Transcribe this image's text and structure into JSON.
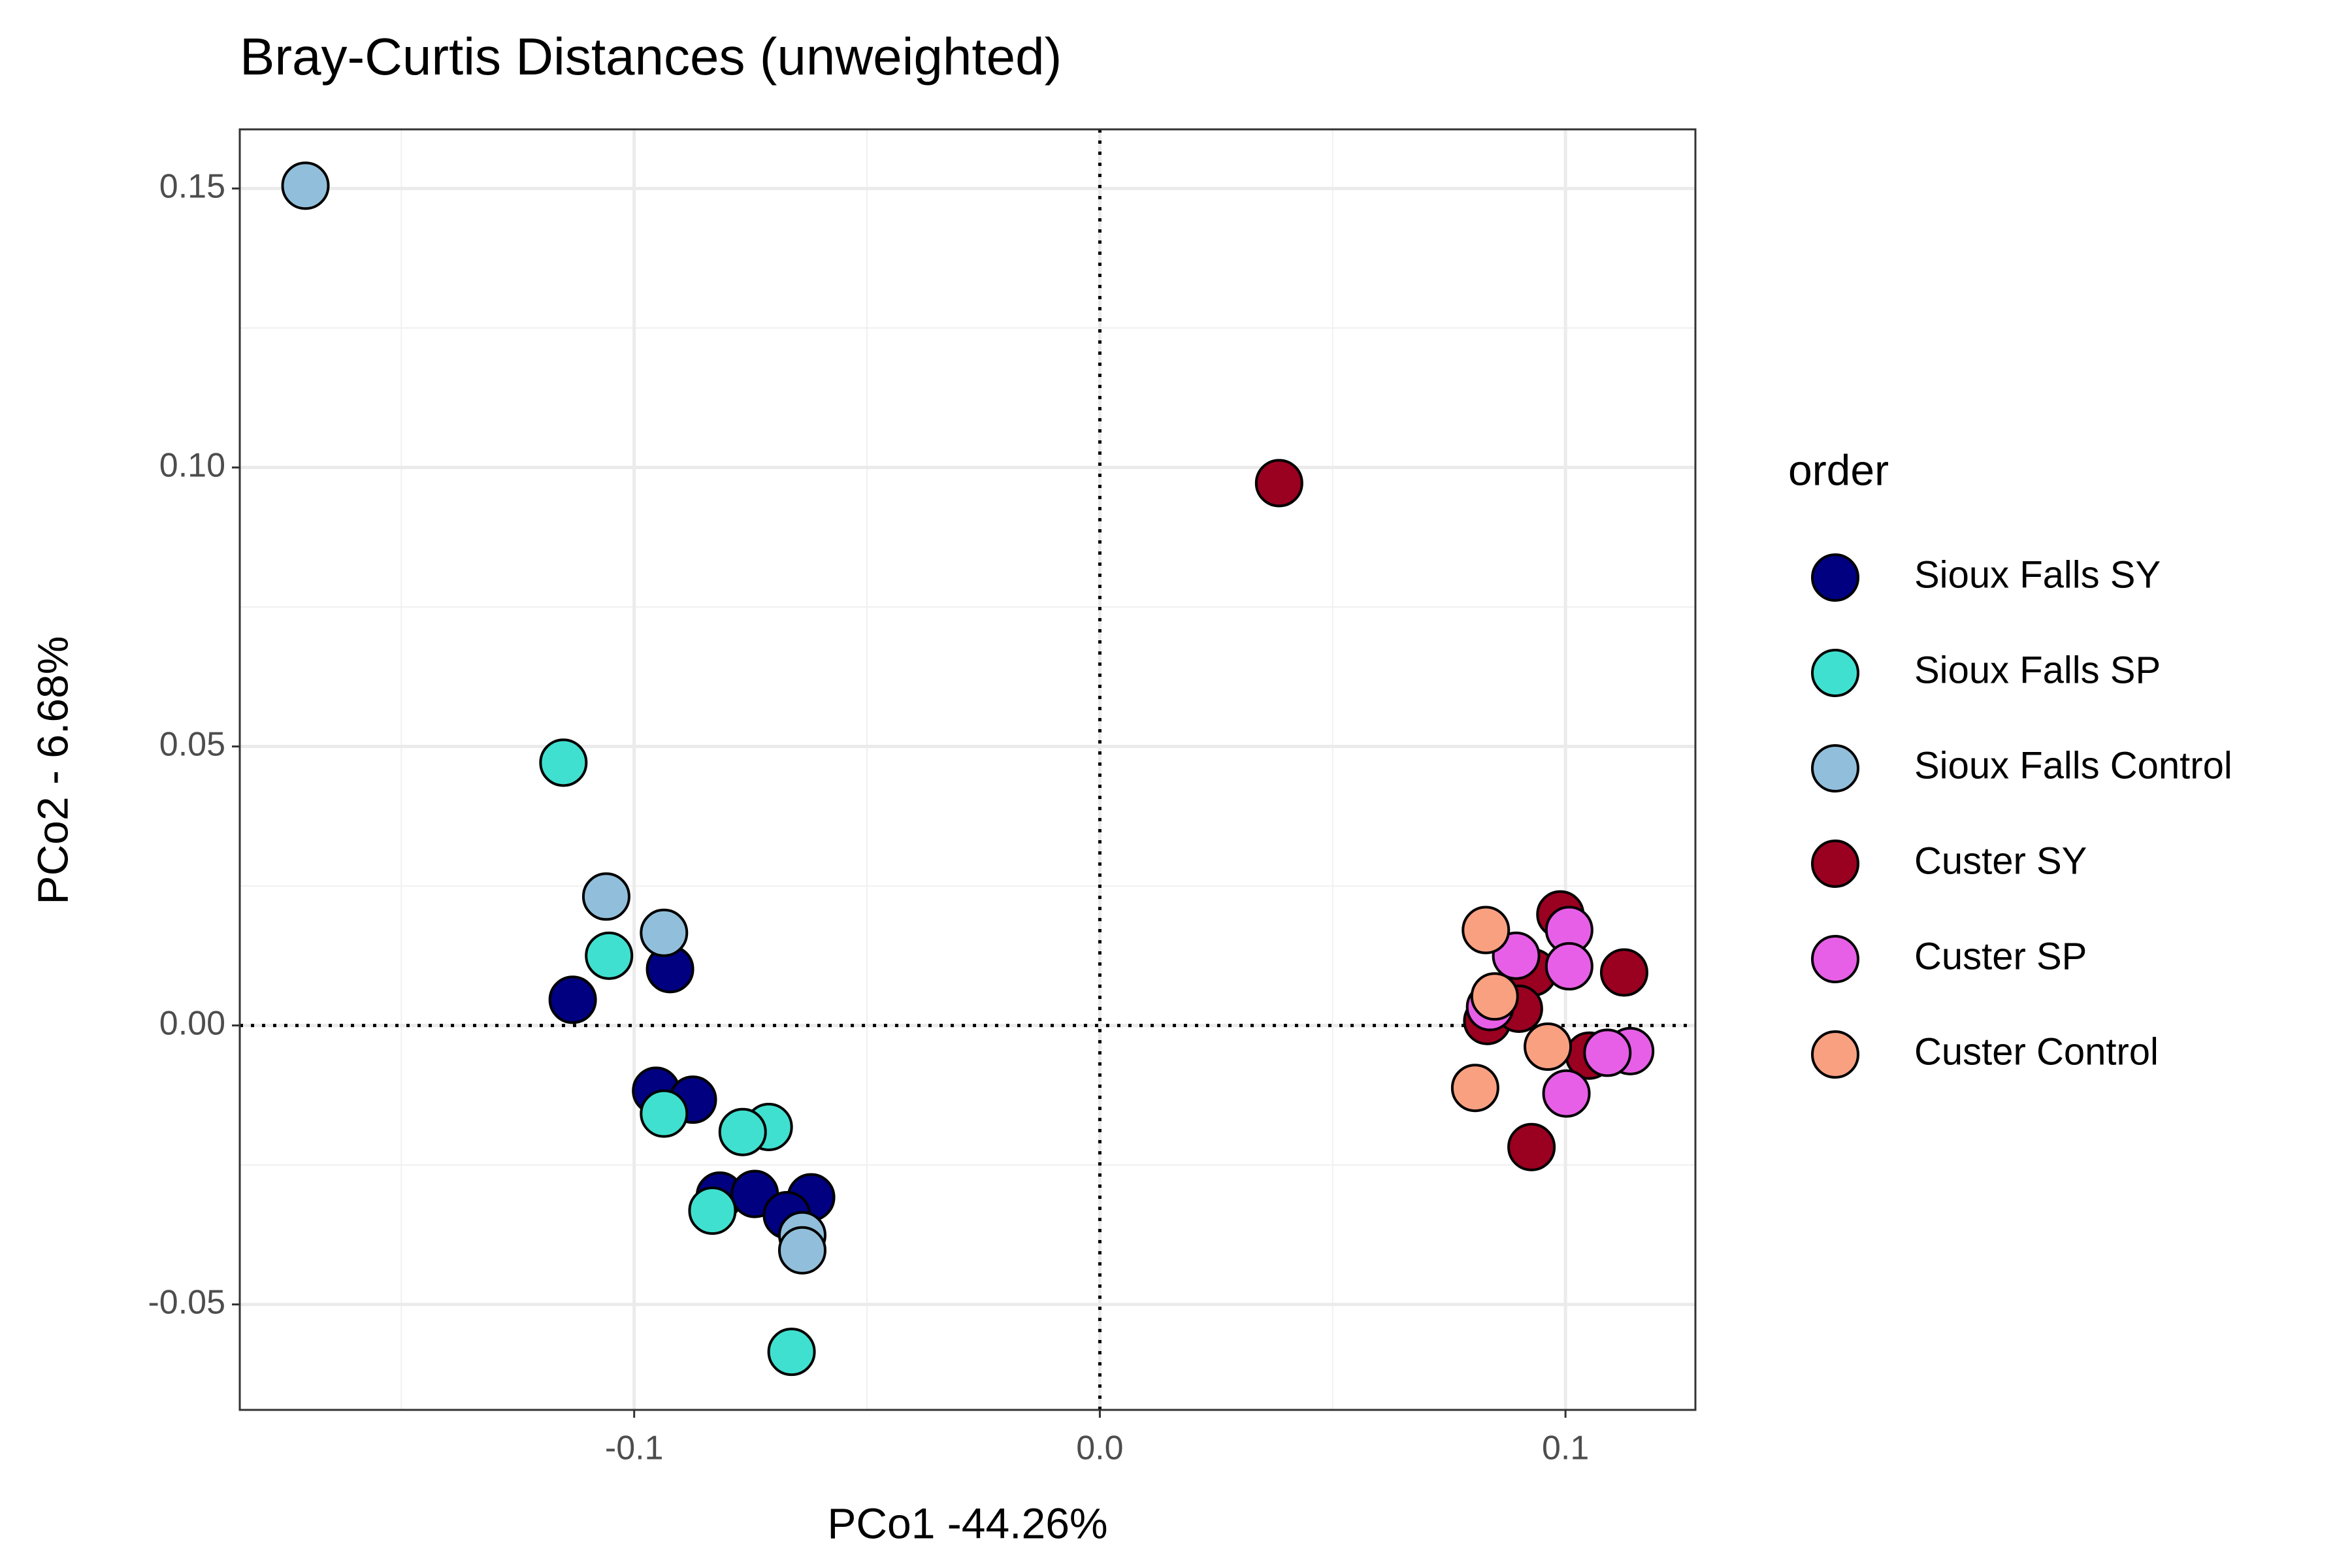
{
  "chart_data": {
    "type": "scatter",
    "title": "Bray-Curtis Distances (unweighted)",
    "xlabel": "PCo1 -44.26%",
    "ylabel": "PCo2 - 6.68%",
    "legend_title": "order",
    "legend": "right",
    "grid": true,
    "xlim": [
      -0.1847,
      0.1279
    ],
    "ylim": [
      -0.0689,
      0.1606
    ],
    "xticks": [
      {
        "value": -0.1,
        "label": "-0.1"
      },
      {
        "value": 0,
        "label": "0.0"
      },
      {
        "value": 0.1,
        "label": "0.1"
      }
    ],
    "yticks": [
      {
        "value": -0.05,
        "label": "-0.05"
      },
      {
        "value": 0,
        "label": "0.00"
      },
      {
        "value": 0.05,
        "label": "0.05"
      },
      {
        "value": 0.1,
        "label": "0.10"
      },
      {
        "value": 0.15,
        "label": "0.15"
      }
    ],
    "hline": 0,
    "vline": 0,
    "series": [
      {
        "name": "Sioux Falls SY",
        "color": "#000080",
        "x": [
          -0.1132,
          -0.0923,
          -0.0953,
          -0.0874,
          -0.0816,
          -0.0741,
          -0.062,
          -0.0672
        ],
        "values": [
          0.0046,
          0.0101,
          -0.0117,
          -0.0133,
          -0.0305,
          -0.0302,
          -0.0308,
          -0.034
        ]
      },
      {
        "name": "Sioux Falls SP",
        "color": "#40E0D0",
        "x": [
          -0.1152,
          -0.1054,
          -0.0936,
          -0.0711,
          -0.0767,
          -0.0832,
          -0.0662
        ],
        "values": [
          0.0471,
          0.0125,
          -0.0158,
          -0.0182,
          -0.0191,
          -0.0332,
          -0.0585
        ]
      },
      {
        "name": "Sioux Falls Control",
        "color": "#91BFDB",
        "x": [
          -0.1706,
          -0.106,
          -0.0936,
          -0.0639,
          -0.0639
        ],
        "values": [
          0.1505,
          0.0231,
          0.0166,
          -0.0376,
          -0.0403
        ]
      },
      {
        "name": "Custer SY",
        "color": "#9A0020",
        "x": [
          0.0385,
          0.0989,
          0.093,
          0.1126,
          0.0832,
          0.09,
          0.1051,
          0.0927
        ],
        "values": [
          0.0972,
          0.0199,
          0.0095,
          0.0095,
          0.0008,
          0.003,
          -0.0054,
          -0.0218
        ]
      },
      {
        "name": "Custer SP",
        "color": "#E75FE7",
        "x": [
          0.1008,
          0.0894,
          0.1008,
          0.0838,
          0.1139,
          0.109,
          0.1002
        ],
        "values": [
          0.0171,
          0.0125,
          0.0106,
          0.0033,
          -0.0046,
          -0.0049,
          -0.0122
        ]
      },
      {
        "name": "Custer Control",
        "color": "#F9A081",
        "x": [
          0.0829,
          0.0848,
          0.0962,
          0.0806
        ],
        "values": [
          0.0171,
          0.0052,
          -0.0038,
          -0.0112
        ]
      }
    ]
  }
}
